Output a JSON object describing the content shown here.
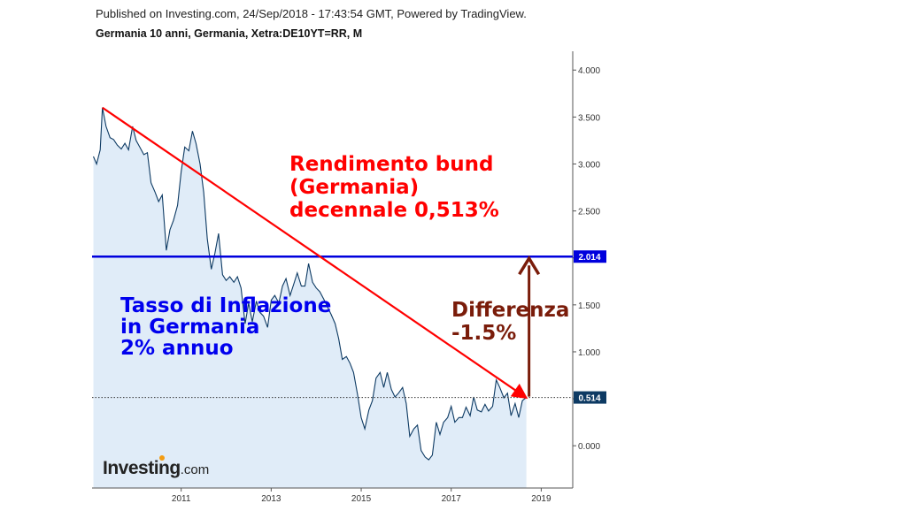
{
  "header": {
    "published": "Published on Investing.com, 24/Sep/2018 - 17:43:54 GMT, Powered by TradingView.",
    "instrument": "Germania 10 anni, Germania, Xetra:DE10YT=RR, M"
  },
  "annotations": {
    "bund_lines": [
      "Rendimento bund",
      "(Germania)",
      "decennale 0,513%"
    ],
    "inflation_lines": [
      "Tasso di Inflazione",
      "in Germania",
      "2% annuo"
    ],
    "difference_lines": [
      "Differenza",
      "-1.5%"
    ]
  },
  "logo": {
    "brand": "Investing",
    "suffix": ".com"
  },
  "colors": {
    "line": "#0d3a63",
    "area": "#d6e6f5",
    "trend_arrow": "#ff0000",
    "inflation_line": "#0000dd",
    "difference_arrow": "#7a1c0a",
    "last_badge": "#0d3a63"
  },
  "chart_data": {
    "type": "area",
    "title": "Germania 10 anni, Germania, Xetra:DE10YT=RR, M",
    "xlabel": "",
    "ylabel": "",
    "x_ticks": [
      "2011",
      "2013",
      "2015",
      "2017",
      "2019"
    ],
    "y_ticks": [
      "0.000",
      "0.500",
      "1.000",
      "1.500",
      "2.000",
      "2.500",
      "3.000",
      "3.500",
      "4.000"
    ],
    "ylim": [
      -0.45,
      4.2
    ],
    "xlim": [
      2009.02,
      2019.7
    ],
    "grid": false,
    "series": [
      {
        "name": "",
        "x": [
          2009.05,
          2009.12,
          2009.2,
          2009.25,
          2009.33,
          2009.42,
          2009.5,
          2009.58,
          2009.67,
          2009.75,
          2009.83,
          2009.92,
          2010.0,
          2010.08,
          2010.17,
          2010.25,
          2010.33,
          2010.42,
          2010.5,
          2010.58,
          2010.67,
          2010.75,
          2010.83,
          2010.92,
          2011.0,
          2011.08,
          2011.17,
          2011.25,
          2011.33,
          2011.42,
          2011.5,
          2011.58,
          2011.67,
          2011.75,
          2011.83,
          2011.92,
          2012.0,
          2012.08,
          2012.17,
          2012.25,
          2012.33,
          2012.42,
          2012.5,
          2012.58,
          2012.67,
          2012.75,
          2012.83,
          2012.92,
          2013.0,
          2013.08,
          2013.17,
          2013.25,
          2013.33,
          2013.42,
          2013.5,
          2013.58,
          2013.67,
          2013.75,
          2013.83,
          2013.92,
          2014.0,
          2014.08,
          2014.17,
          2014.25,
          2014.33,
          2014.42,
          2014.5,
          2014.58,
          2014.67,
          2014.75,
          2014.83,
          2014.92,
          2015.0,
          2015.08,
          2015.17,
          2015.25,
          2015.33,
          2015.42,
          2015.5,
          2015.58,
          2015.67,
          2015.75,
          2015.83,
          2015.92,
          2016.0,
          2016.08,
          2016.17,
          2016.25,
          2016.33,
          2016.42,
          2016.5,
          2016.58,
          2016.67,
          2016.75,
          2016.83,
          2016.92,
          2017.0,
          2017.08,
          2017.17,
          2017.25,
          2017.33,
          2017.42,
          2017.5,
          2017.58,
          2017.67,
          2017.75,
          2017.83,
          2017.92,
          2018.0,
          2018.08,
          2018.17,
          2018.25,
          2018.33,
          2018.42,
          2018.5,
          2018.58,
          2018.67
        ],
        "values": [
          3.08,
          3.0,
          3.15,
          3.6,
          3.4,
          3.28,
          3.26,
          3.2,
          3.16,
          3.22,
          3.15,
          3.4,
          3.25,
          3.18,
          3.1,
          3.12,
          2.8,
          2.7,
          2.6,
          2.67,
          2.08,
          2.3,
          2.4,
          2.56,
          2.92,
          3.18,
          3.14,
          3.35,
          3.22,
          3.0,
          2.7,
          2.2,
          1.88,
          2.05,
          2.26,
          1.82,
          1.76,
          1.8,
          1.74,
          1.8,
          1.68,
          1.3,
          1.52,
          1.32,
          1.54,
          1.42,
          1.38,
          1.26,
          1.55,
          1.6,
          1.52,
          1.7,
          1.78,
          1.6,
          1.72,
          1.84,
          1.7,
          1.7,
          1.94,
          1.74,
          1.68,
          1.64,
          1.56,
          1.48,
          1.4,
          1.3,
          1.14,
          0.92,
          0.95,
          0.88,
          0.78,
          0.54,
          0.3,
          0.18,
          0.38,
          0.48,
          0.72,
          0.78,
          0.62,
          0.78,
          0.6,
          0.52,
          0.56,
          0.62,
          0.45,
          0.1,
          0.18,
          0.22,
          -0.05,
          -0.12,
          -0.15,
          -0.1,
          0.25,
          0.12,
          0.25,
          0.3,
          0.42,
          0.25,
          0.3,
          0.3,
          0.41,
          0.32,
          0.52,
          0.38,
          0.36,
          0.44,
          0.37,
          0.42,
          0.7,
          0.62,
          0.51,
          0.56,
          0.32,
          0.45,
          0.3,
          0.48,
          0.514
        ]
      }
    ],
    "last_value": "0.514",
    "inflation_level": 2.014,
    "inflation_label": "2.014"
  }
}
